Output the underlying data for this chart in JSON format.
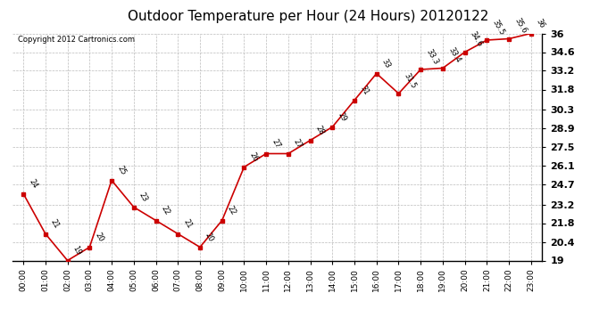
{
  "title": "Outdoor Temperature per Hour (24 Hours) 20120122",
  "copyright_text": "Copyright 2012 Cartronics.com",
  "hours": [
    "00:00",
    "01:00",
    "02:00",
    "03:00",
    "04:00",
    "05:00",
    "06:00",
    "07:00",
    "08:00",
    "09:00",
    "10:00",
    "11:00",
    "12:00",
    "13:00",
    "14:00",
    "15:00",
    "16:00",
    "17:00",
    "18:00",
    "19:00",
    "20:00",
    "21:00",
    "22:00",
    "23:00"
  ],
  "values": [
    24.0,
    21.0,
    19.0,
    20.0,
    25.0,
    23.0,
    22.0,
    21.0,
    20.0,
    22.0,
    26.0,
    27.0,
    27.0,
    28.0,
    29.0,
    31.0,
    33.0,
    31.5,
    33.3,
    33.4,
    34.6,
    35.5,
    35.6,
    36.0
  ],
  "ylim": [
    19.0,
    36.0
  ],
  "yticks": [
    19.0,
    20.4,
    21.8,
    23.2,
    24.7,
    26.1,
    27.5,
    28.9,
    30.3,
    31.8,
    33.2,
    34.6,
    36.0
  ],
  "line_color": "#cc0000",
  "marker_color": "#cc0000",
  "bg_color": "#ffffff",
  "grid_color": "#bbbbbb",
  "title_fontsize": 11,
  "annotation_fontsize": 6,
  "ytick_fontsize": 8,
  "xtick_fontsize": 6.5,
  "copyright_fontsize": 6
}
